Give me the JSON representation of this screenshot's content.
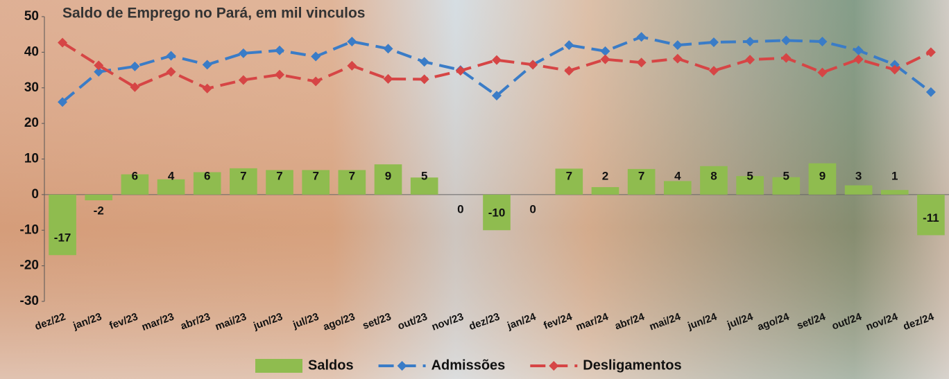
{
  "chart_data": {
    "type": "combo",
    "title": "Saldo de Emprego no Pará, em mil vinculos",
    "categories": [
      "dez/22",
      "jan/23",
      "fev/23",
      "mar/23",
      "abr/23",
      "mai/23",
      "jun/23",
      "jul/23",
      "ago/23",
      "set/23",
      "out/23",
      "nov/23",
      "dez/23",
      "jan/24",
      "fev/24",
      "mar/24",
      "abr/24",
      "mai/24",
      "jun/24",
      "jul/24",
      "ago/24",
      "set/24",
      "out/24",
      "nov/24",
      "dez/24"
    ],
    "series": [
      {
        "name": "Saldos",
        "type": "bar",
        "color": "#8fbc4f",
        "values": [
          -17,
          -1.6,
          5.7,
          4.3,
          6.3,
          7.4,
          6.9,
          6.9,
          6.9,
          8.5,
          4.8,
          0,
          -10,
          0,
          7.3,
          2.1,
          7.2,
          3.8,
          8,
          5.2,
          4.9,
          8.8,
          2.6,
          1.3,
          -11.4
        ],
        "value_labels": [
          "-17",
          "-2",
          "6",
          "4",
          "6",
          "7",
          "7",
          "7",
          "7",
          "9",
          "5",
          "0",
          "-10",
          "0",
          "7",
          "2",
          "7",
          "4",
          "8",
          "5",
          "5",
          "9",
          "3",
          "1",
          "-11"
        ]
      },
      {
        "name": "Admissões",
        "type": "line",
        "color": "#3a7cc7",
        "values": [
          26,
          34.5,
          36,
          39,
          36.5,
          39.7,
          40.5,
          38.8,
          43,
          41,
          37.3,
          35,
          27.8,
          36.5,
          42,
          40.3,
          44.3,
          42,
          42.8,
          43,
          43.3,
          43,
          40.5,
          36.5,
          28.8
        ]
      },
      {
        "name": "Desligamentos",
        "type": "line",
        "color": "#d64545",
        "values": [
          42.7,
          36.3,
          30.2,
          34.5,
          29.8,
          32.2,
          33.7,
          31.8,
          36.2,
          32.5,
          32.4,
          34.8,
          37.8,
          36.5,
          34.8,
          38,
          37.1,
          38.2,
          34.8,
          37.9,
          38.4,
          34.3,
          38,
          35.1,
          40
        ]
      }
    ],
    "ylim": [
      -30,
      50
    ],
    "yticks": [
      -30,
      -20,
      -10,
      0,
      10,
      20,
      30,
      40,
      50
    ]
  }
}
